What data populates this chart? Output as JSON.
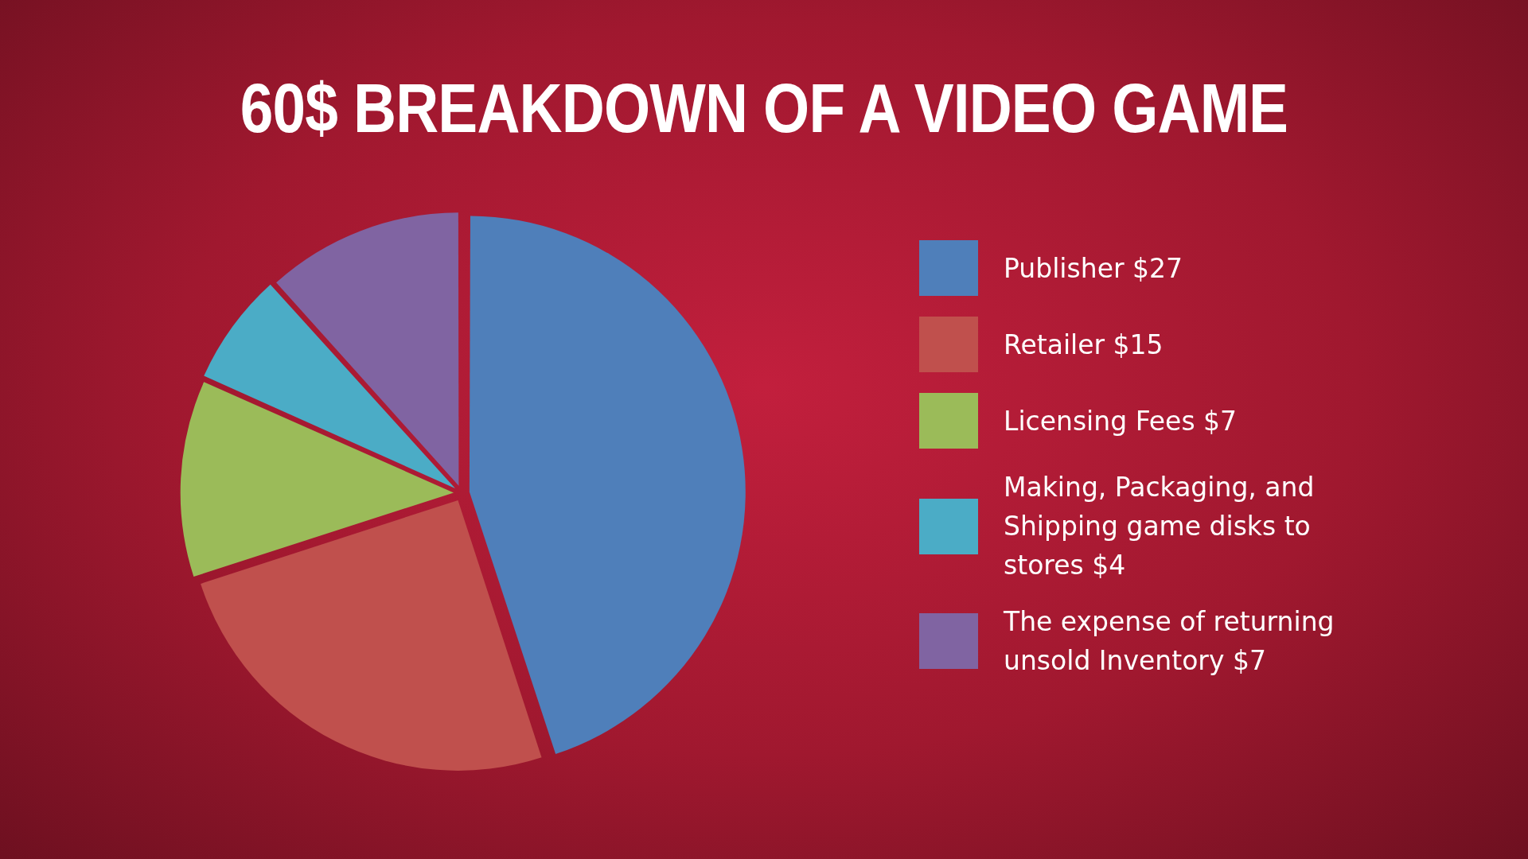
{
  "chart_data": {
    "type": "pie",
    "title": "60$ BREAKDOWN OF A VIDEO GAME",
    "categories": [
      "Publisher $27",
      "Retailer $15",
      "Licensing Fees $7",
      "Making, Packaging, and Shipping game disks to stores $4",
      "The expense of returning unsold Inventory $7"
    ],
    "values": [
      27,
      15,
      7,
      4,
      7
    ],
    "colors": [
      "#4f7fba",
      "#c0504d",
      "#9bbb59",
      "#4bacc6",
      "#8064a2"
    ],
    "legend": "right"
  }
}
